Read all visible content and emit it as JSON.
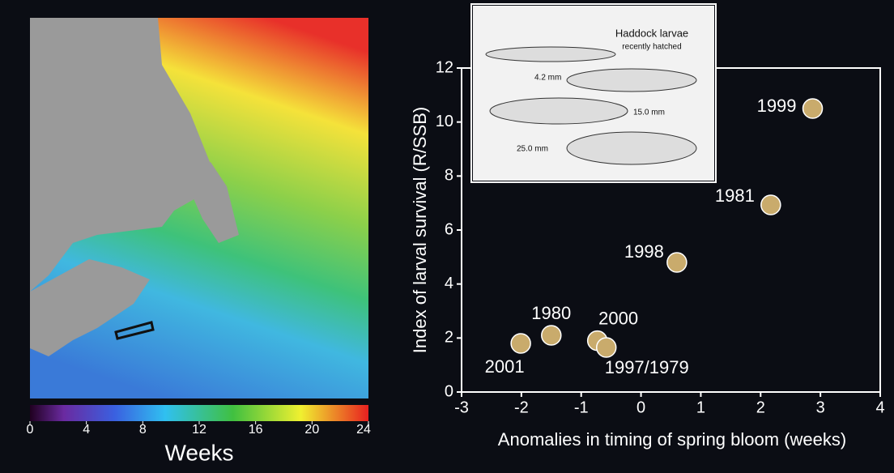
{
  "chart_data": {
    "type": "scatter",
    "xlabel": "Anomalies in timing of spring bloom (weeks)",
    "ylabel": "Index of larval survival (R/SSB)",
    "labels": [
      "1999",
      "1981",
      "1998",
      "1980",
      "2000",
      "1997/1979",
      "2001"
    ],
    "x": [
      2.87,
      2.17,
      0.6,
      -1.5,
      -0.73,
      -0.58,
      -2.01
    ],
    "values": [
      10.5,
      6.93,
      4.8,
      2.1,
      1.9,
      1.65,
      1.8
    ],
    "color": "#c9ab6c",
    "xlim": [
      -3,
      4
    ],
    "xticks": [
      -3,
      -2,
      -1,
      0,
      1,
      2,
      3,
      4
    ],
    "ylim": [
      0,
      12
    ],
    "yticks": [
      0,
      2,
      4,
      6,
      8,
      10,
      12
    ]
  },
  "map": {
    "colorbar": {
      "ticks": [
        0,
        4,
        8,
        12,
        16,
        20,
        24
      ],
      "lim": [
        0,
        24
      ],
      "label": "Weeks"
    }
  },
  "inset": {
    "title": "Haddock larvae",
    "subtitle": "recently hatched",
    "sizes": [
      "4.2 mm",
      "15.0 mm",
      "25.0 mm"
    ]
  }
}
